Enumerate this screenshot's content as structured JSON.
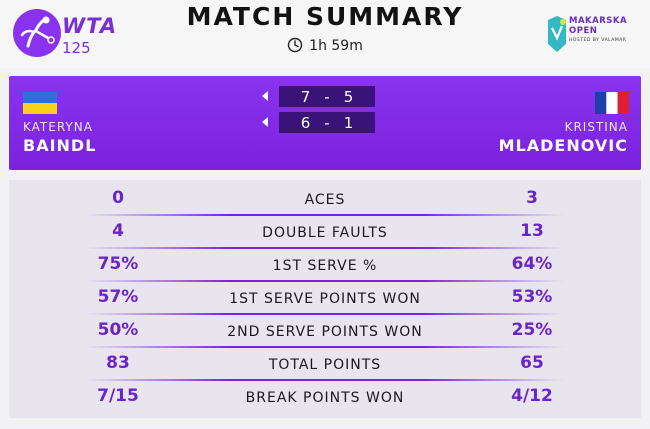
{
  "header": {
    "logo_text": "WTA",
    "logo_sub": "125",
    "title": "MATCH SUMMARY",
    "duration": "1h 59m",
    "sponsor": {
      "line1": "MAKARSKA",
      "line2": "OPEN",
      "line3": "HOSTED BY VALAMAR"
    }
  },
  "colors": {
    "brand_purple": "#7a22dd",
    "dark_purple": "#3a1378",
    "stat_value": "#6a25c8"
  },
  "players": {
    "left": {
      "first": "KATERYNA",
      "last": "BAINDL",
      "flag": "ukraine-flag"
    },
    "right": {
      "first": "KRISTINA",
      "last": "MLADENOVIC",
      "flag": "france-flag"
    }
  },
  "sets": [
    {
      "left": "7",
      "sep": "-",
      "right": "5"
    },
    {
      "left": "6",
      "sep": "-",
      "right": "1"
    }
  ],
  "stats": [
    {
      "label": "ACES",
      "left": "0",
      "right": "3"
    },
    {
      "label": "DOUBLE FAULTS",
      "left": "4",
      "right": "13"
    },
    {
      "label": "1ST SERVE %",
      "left": "75%",
      "right": "64%"
    },
    {
      "label": "1ST SERVE POINTS WON",
      "left": "57%",
      "right": "53%"
    },
    {
      "label": "2ND SERVE POINTS WON",
      "left": "50%",
      "right": "25%"
    },
    {
      "label": "TOTAL POINTS",
      "left": "83",
      "right": "65"
    },
    {
      "label": "BREAK POINTS WON",
      "left": "7/15",
      "right": "4/12"
    }
  ]
}
